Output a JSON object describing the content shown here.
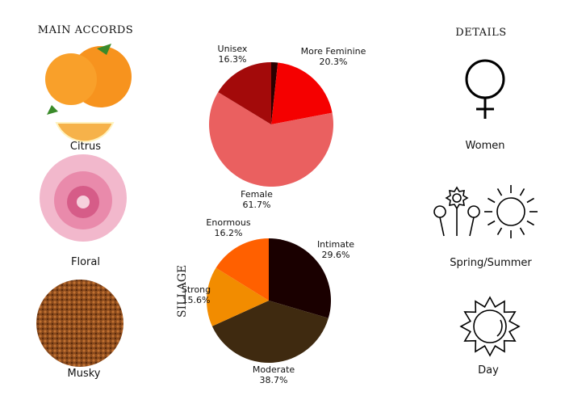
{
  "left": {
    "title": "MAIN ACCORDS",
    "accords": [
      {
        "label": "Citrus",
        "icon": "tangerine-image"
      },
      {
        "label": "Floral",
        "icon": "peony-image"
      },
      {
        "label": "Musky",
        "icon": "musk-granules-image"
      }
    ]
  },
  "right": {
    "title": "DETAILS",
    "items": [
      {
        "label": "Women",
        "icon": "venus-icon"
      },
      {
        "label": "Spring/Summer",
        "icon": "flowers-sun-icon"
      },
      {
        "label": "Day",
        "icon": "sun-icon"
      }
    ]
  },
  "chart_data": [
    {
      "type": "pie",
      "title": "",
      "slices": [
        {
          "label": "",
          "value": 1.7,
          "color": "#2a0000"
        },
        {
          "label": "More Feminine",
          "value": 20.3,
          "display": "20.3%",
          "color": "#f50000"
        },
        {
          "label": "Female",
          "value": 61.7,
          "display": "61.7%",
          "color": "#ea6060"
        },
        {
          "label": "Unisex",
          "value": 16.3,
          "display": "16.3%",
          "color": "#a30a0a"
        }
      ]
    },
    {
      "type": "pie",
      "title": "SILLAGE",
      "slices": [
        {
          "label": "Intimate",
          "value": 29.6,
          "display": "29.6%",
          "color": "#1a0000"
        },
        {
          "label": "Moderate",
          "value": 38.7,
          "display": "38.7%",
          "color": "#3f2a10"
        },
        {
          "label": "Strong",
          "value": 15.6,
          "display": "15.6%",
          "color": "#f28c00"
        },
        {
          "label": "Enormous",
          "value": 16.2,
          "display": "16.2%",
          "color": "#ff6000"
        }
      ]
    }
  ]
}
